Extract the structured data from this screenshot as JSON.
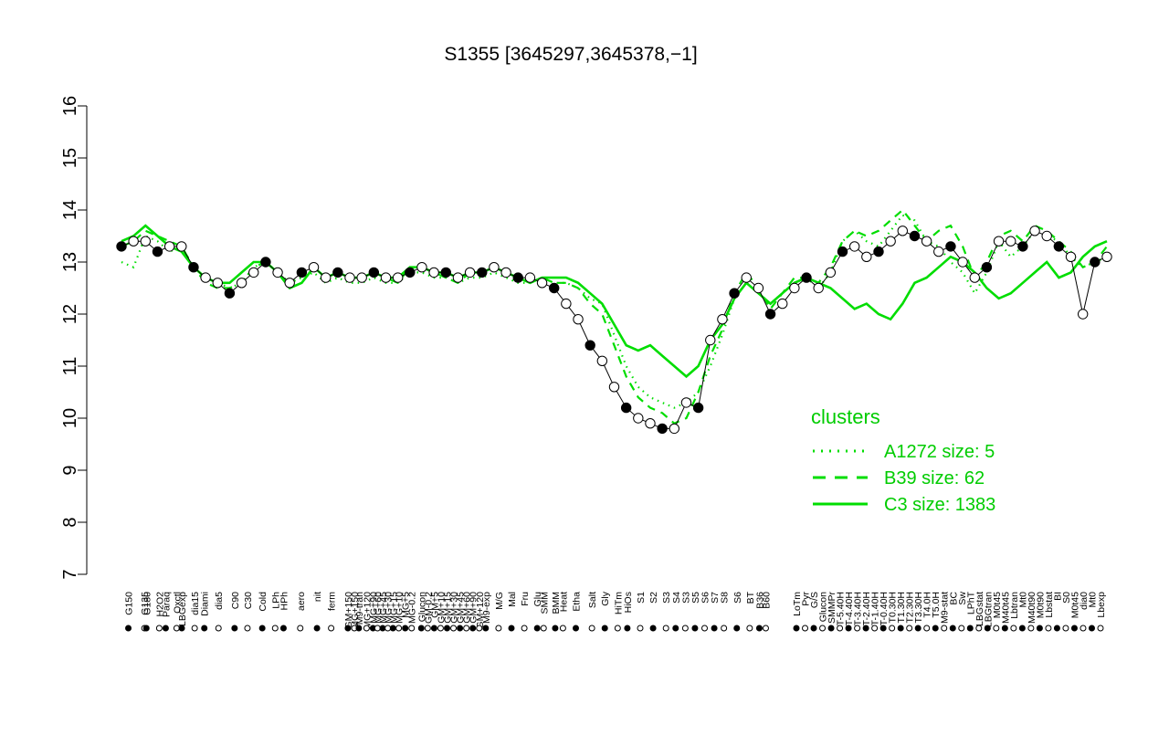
{
  "chart_data": {
    "type": "line",
    "title": "S1355 [3645297,3645378,−1]",
    "xlabel": "",
    "ylabel": "",
    "ylim": [
      7,
      16
    ],
    "yticks": [
      "7",
      "8",
      "9",
      "10",
      "11",
      "12",
      "13",
      "14",
      "15",
      "16"
    ],
    "xlim": [
      0,
      100
    ],
    "x_tick_labels": [
      {
        "x": 0.5,
        "label": "G150"
      },
      {
        "x": 3.0,
        "label": "G135"
      },
      {
        "x": 3.3,
        "label": "G180"
      },
      {
        "x": 5.3,
        "label": "H2O2"
      },
      {
        "x": 6.3,
        "label": "Paraq"
      },
      {
        "x": 8.0,
        "label": "Oxctl"
      },
      {
        "x": 8.8,
        "label": "LBGexp"
      },
      {
        "x": 10.8,
        "label": "dia15"
      },
      {
        "x": 12.3,
        "label": "Diami"
      },
      {
        "x": 14.5,
        "label": "dia5"
      },
      {
        "x": 17.0,
        "label": "C90"
      },
      {
        "x": 19.0,
        "label": "C30"
      },
      {
        "x": 21.3,
        "label": "Cold"
      },
      {
        "x": 23.3,
        "label": "LPh"
      },
      {
        "x": 24.6,
        "label": "HPh"
      },
      {
        "x": 27.2,
        "label": "aero"
      },
      {
        "x": 29.8,
        "label": "nit"
      },
      {
        "x": 32.0,
        "label": "ferm"
      },
      {
        "x": 34.6,
        "label": "GM+150"
      },
      {
        "x": 35.6,
        "label": "MG+150"
      },
      {
        "x": 36.3,
        "label": "M9-tran"
      },
      {
        "x": 37.5,
        "label": "MG+120"
      },
      {
        "x": 38.5,
        "label": "MG+90"
      },
      {
        "x": 39.2,
        "label": "MG+60"
      },
      {
        "x": 40.0,
        "label": "MG+45"
      },
      {
        "x": 40.8,
        "label": "MG+30"
      },
      {
        "x": 41.6,
        "label": "MG+15"
      },
      {
        "x": 42.5,
        "label": "MG+10"
      },
      {
        "x": 43.5,
        "label": "MG+5"
      },
      {
        "x": 44.5,
        "label": "MG-0.2"
      },
      {
        "x": 46.0,
        "label": "Glucon"
      },
      {
        "x": 47.0,
        "label": "GM-0.2"
      },
      {
        "x": 48.0,
        "label": "GM+5"
      },
      {
        "x": 49.0,
        "label": "GM+10"
      },
      {
        "x": 50.0,
        "label": "GM+15"
      },
      {
        "x": 51.0,
        "label": "GM+30"
      },
      {
        "x": 52.0,
        "label": "GM+45"
      },
      {
        "x": 53.0,
        "label": "GM+60"
      },
      {
        "x": 54.0,
        "label": "GM+90"
      },
      {
        "x": 55.0,
        "label": "GM+120"
      },
      {
        "x": 56.0,
        "label": "M9-exp"
      },
      {
        "x": 58.0,
        "label": "M/G"
      },
      {
        "x": 60.0,
        "label": "Mal"
      },
      {
        "x": 62.0,
        "label": "Fru"
      },
      {
        "x": 64.0,
        "label": "Glu"
      },
      {
        "x": 65.0,
        "label": "SMM"
      },
      {
        "x": 66.8,
        "label": "BMM"
      },
      {
        "x": 68.0,
        "label": "Heat"
      },
      {
        "x": 70.0,
        "label": "Etha"
      },
      {
        "x": 72.5,
        "label": "Salt"
      },
      {
        "x": 74.5,
        "label": "Gly"
      },
      {
        "x": 76.5,
        "label": "HiTm"
      },
      {
        "x": 78.0,
        "label": "HiOs"
      },
      {
        "x": 80.0,
        "label": "S1"
      },
      {
        "x": 82.0,
        "label": "S2"
      },
      {
        "x": 84.0,
        "label": "S3"
      },
      {
        "x": 85.5,
        "label": "S4"
      },
      {
        "x": 87.0,
        "label": "S3"
      },
      {
        "x": 88.5,
        "label": "S5"
      },
      {
        "x": 90.0,
        "label": "S6"
      },
      {
        "x": 91.5,
        "label": "S7"
      },
      {
        "x": 93.0,
        "label": "S8"
      },
      {
        "x": 95.0,
        "label": "S6"
      },
      {
        "x": 97.0,
        "label": "BT"
      },
      {
        "x": 98.5,
        "label": "B36"
      },
      {
        "x": 99.5,
        "label": "B60"
      }
    ],
    "x_tick_labels_right": [
      "LoTm",
      "Pyr",
      "G/S",
      "Glucon",
      "SMMPr",
      "T-5.40H",
      "T-4.40H",
      "T-3.40H",
      "T-2.40H",
      "T-1.40H",
      "T-0.40H",
      "T0.30H",
      "T1.30H",
      "T2.30H",
      "T3.30H",
      "T4.0H",
      "T5.0H",
      "M9-stat",
      "BC",
      "Sw",
      "LPhT",
      "LBGstat",
      "LBGtran",
      "M0t45",
      "M40t45",
      "Lbtran",
      "Mt0",
      "M40t90",
      "M0t90",
      "Lbstat",
      "BI",
      "S0",
      "M0t45",
      "dia0",
      "Mt0",
      "Lbexp"
    ],
    "series": [
      {
        "name": "A1272 size: 5",
        "style": "dotted",
        "color": "#00dd00",
        "values": [
          13.0,
          12.9,
          13.5,
          13.4,
          13.2,
          13.3,
          12.9,
          12.7,
          12.6,
          12.5,
          12.6,
          12.9,
          13.0,
          12.8,
          12.6,
          12.7,
          12.8,
          12.6,
          12.7,
          12.6,
          12.6,
          12.7,
          12.6,
          12.6,
          12.8,
          12.8,
          12.7,
          12.7,
          12.6,
          12.7,
          12.7,
          12.8,
          12.7,
          12.6,
          12.6,
          12.7,
          12.6,
          12.6,
          12.5,
          12.3,
          12.2,
          11.6,
          11.0,
          10.6,
          10.4,
          10.3,
          10.2,
          10.3,
          10.5,
          11.0,
          11.6,
          12.3,
          12.6,
          12.4,
          12.2,
          12.4,
          12.6,
          12.7,
          12.5,
          12.8,
          13.4,
          13.6,
          13.4,
          13.3,
          13.6,
          13.9,
          13.8,
          13.4,
          13.3,
          13.0,
          12.8,
          12.4,
          12.8,
          13.4,
          13.1,
          13.3,
          13.6,
          13.5,
          13.4,
          13.1,
          12.9,
          13.0,
          13.1
        ]
      },
      {
        "name": "B39 size: 62",
        "style": "dashed",
        "color": "#00dd00",
        "values": [
          13.3,
          13.4,
          13.6,
          13.5,
          13.4,
          13.3,
          12.9,
          12.6,
          12.5,
          12.5,
          12.6,
          12.9,
          13.0,
          12.8,
          12.5,
          12.6,
          12.9,
          12.7,
          12.8,
          12.7,
          12.7,
          12.8,
          12.7,
          12.6,
          12.9,
          12.9,
          12.8,
          12.7,
          12.6,
          12.8,
          12.8,
          12.9,
          12.8,
          12.7,
          12.6,
          12.7,
          12.6,
          12.6,
          12.5,
          12.2,
          12.0,
          11.4,
          10.8,
          10.4,
          10.2,
          10.1,
          9.9,
          10.0,
          10.5,
          11.2,
          11.7,
          12.4,
          12.8,
          12.5,
          12.1,
          12.4,
          12.7,
          12.7,
          12.6,
          12.9,
          13.4,
          13.6,
          13.5,
          13.6,
          13.8,
          14.0,
          13.7,
          13.4,
          13.6,
          13.7,
          13.3,
          12.7,
          13.0,
          13.5,
          13.6,
          13.4,
          13.7,
          13.6,
          13.4,
          13.2,
          12.9,
          13.0,
          13.3
        ]
      },
      {
        "name": "C3 size: 1383",
        "style": "solid",
        "color": "#00dd00",
        "values": [
          13.4,
          13.5,
          13.7,
          13.5,
          13.3,
          13.2,
          12.9,
          12.7,
          12.6,
          12.6,
          12.8,
          13.0,
          13.0,
          12.8,
          12.5,
          12.6,
          12.9,
          12.7,
          12.8,
          12.7,
          12.7,
          12.8,
          12.7,
          12.7,
          12.9,
          12.9,
          12.8,
          12.8,
          12.7,
          12.8,
          12.8,
          12.9,
          12.8,
          12.7,
          12.6,
          12.7,
          12.7,
          12.7,
          12.6,
          12.4,
          12.2,
          11.8,
          11.4,
          11.3,
          11.4,
          11.2,
          11.0,
          10.8,
          11.0,
          11.5,
          11.8,
          12.3,
          12.6,
          12.4,
          12.2,
          12.4,
          12.6,
          12.7,
          12.6,
          12.5,
          12.3,
          12.1,
          12.2,
          12.0,
          11.9,
          12.2,
          12.6,
          12.7,
          12.9,
          13.1,
          13.0,
          12.8,
          12.5,
          12.3,
          12.4,
          12.6,
          12.8,
          13.0,
          12.7,
          12.8,
          13.1,
          13.3,
          13.4
        ]
      },
      {
        "name": "S1355",
        "style": "points",
        "color": "#000000",
        "values": [
          13.3,
          13.4,
          13.4,
          13.2,
          13.3,
          13.3,
          12.9,
          12.7,
          12.6,
          12.4,
          12.6,
          12.8,
          13.0,
          12.8,
          12.6,
          12.8,
          12.9,
          12.7,
          12.8,
          12.7,
          12.7,
          12.8,
          12.7,
          12.7,
          12.8,
          12.9,
          12.8,
          12.8,
          12.7,
          12.8,
          12.8,
          12.9,
          12.8,
          12.7,
          12.7,
          12.6,
          12.5,
          12.2,
          11.9,
          11.4,
          11.1,
          10.6,
          10.2,
          10.0,
          9.9,
          9.8,
          9.8,
          10.3,
          10.2,
          11.5,
          11.9,
          12.4,
          12.7,
          12.5,
          12.0,
          12.2,
          12.5,
          12.7,
          12.5,
          12.8,
          13.2,
          13.3,
          13.1,
          13.2,
          13.4,
          13.6,
          13.5,
          13.4,
          13.2,
          13.3,
          13.0,
          12.7,
          12.9,
          13.4,
          13.4,
          13.3,
          13.6,
          13.5,
          13.3,
          13.1,
          12.0,
          13.0,
          13.1
        ]
      }
    ],
    "legend": {
      "title": "clusters",
      "position": "right",
      "entries": [
        "A1272 size: 5",
        "B39 size: 62",
        "C3 size: 1383"
      ]
    },
    "grid": false
  }
}
